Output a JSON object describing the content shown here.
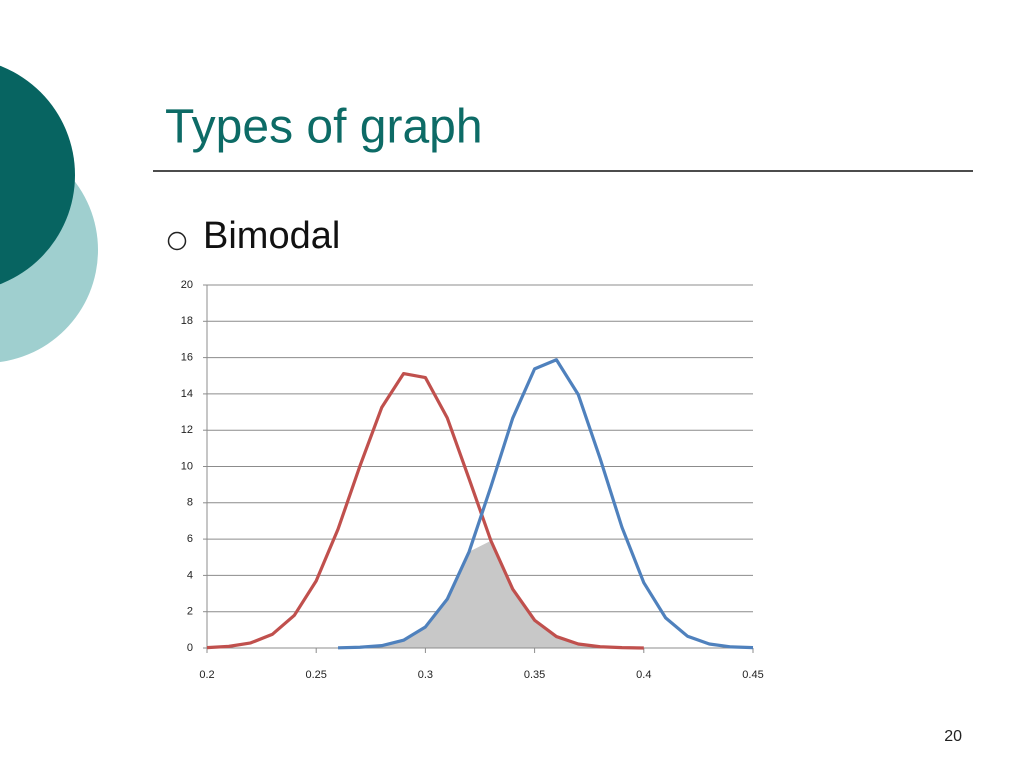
{
  "slide": {
    "title": "Types of graph",
    "bullet": "Bimodal",
    "page_number": "20"
  },
  "chart_data": {
    "type": "line",
    "x": [
      0.2,
      0.21,
      0.22,
      0.23,
      0.24,
      0.25,
      0.26,
      0.27,
      0.28,
      0.29,
      0.3,
      0.31,
      0.32,
      0.33,
      0.34,
      0.35,
      0.36,
      0.37,
      0.38,
      0.39,
      0.4,
      0.41,
      0.42,
      0.43,
      0.44,
      0.45
    ],
    "series": [
      {
        "color": "#c0504d",
        "values": [
          0.02,
          0.09,
          0.28,
          0.76,
          1.8,
          3.7,
          6.55,
          10.02,
          13.25,
          15.12,
          14.9,
          12.68,
          9.32,
          5.91,
          3.24,
          1.53,
          0.63,
          0.22,
          0.07,
          0.02,
          0,
          null,
          null,
          null,
          null,
          null
        ]
      },
      {
        "color": "#4f81bd",
        "values": [
          null,
          null,
          null,
          null,
          null,
          null,
          0.01,
          0.04,
          0.13,
          0.43,
          1.16,
          2.69,
          5.3,
          8.89,
          12.67,
          15.38,
          15.88,
          13.96,
          10.44,
          6.65,
          3.6,
          1.66,
          0.65,
          0.22,
          0.06,
          0.02
        ]
      }
    ],
    "overlap_color": "#c8c8c8",
    "xlim": [
      0.2,
      0.45
    ],
    "xticks": [
      0.2,
      0.25,
      0.3,
      0.35,
      0.4,
      0.45
    ],
    "ylim": [
      0,
      20
    ],
    "yticks": [
      0,
      2,
      4,
      6,
      8,
      10,
      12,
      14,
      16,
      18,
      20
    ],
    "grid": true
  }
}
